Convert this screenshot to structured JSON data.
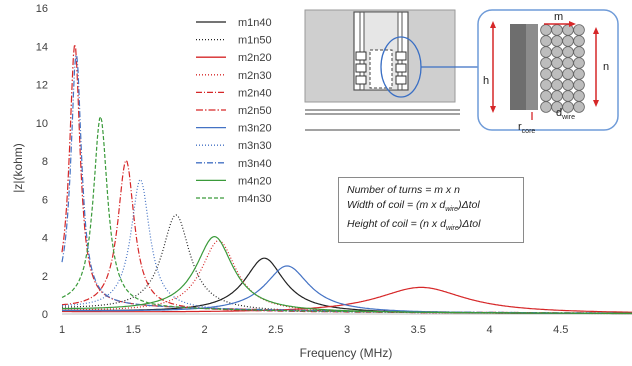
{
  "chart_data": {
    "type": "line",
    "title": "",
    "xlabel": "Frequency (MHz)",
    "ylabel": "|z|(kohm)",
    "xlim": [
      1,
      5
    ],
    "ylim": [
      0,
      16
    ],
    "xticks": [
      "1",
      "1.5",
      "2",
      "2.5",
      "3",
      "3.5",
      "4",
      "4.5"
    ],
    "yticks": [
      "0",
      "2",
      "4",
      "6",
      "8",
      "10",
      "12",
      "14",
      "16"
    ],
    "grid": false,
    "legend_position": "top-center",
    "series": [
      {
        "name": "m1n40",
        "color": "#222222",
        "dash": "",
        "peak_x": 2.42,
        "peak_y": 2.9,
        "width": 0.17,
        "base": 0.15
      },
      {
        "name": "m1n50",
        "color": "#222222",
        "dash": "1,2",
        "peak_x": 1.8,
        "peak_y": 5.1,
        "width": 0.12,
        "base": 0.25
      },
      {
        "name": "m2n20",
        "color": "#d62728",
        "dash": "",
        "peak_x": 3.52,
        "peak_y": 1.4,
        "width": 0.38,
        "base": 0.1
      },
      {
        "name": "m2n30",
        "color": "#d62728",
        "dash": "1,2",
        "peak_x": 2.1,
        "peak_y": 3.8,
        "width": 0.15,
        "base": 0.15
      },
      {
        "name": "m2n40",
        "color": "#d62728",
        "dash": "6,2,1,2",
        "peak_x": 1.45,
        "peak_y": 7.9,
        "width": 0.07,
        "base": 0.3
      },
      {
        "name": "m2n50",
        "color": "#d62728",
        "dash": "7,2,1.5,2",
        "peak_x": 1.09,
        "peak_y": 13.8,
        "width": 0.045,
        "base": 0.5
      },
      {
        "name": "m3n20",
        "color": "#4472c4",
        "dash": "",
        "peak_x": 2.58,
        "peak_y": 2.5,
        "width": 0.19,
        "base": 0.15
      },
      {
        "name": "m3n30",
        "color": "#4472c4",
        "dash": "1,2",
        "peak_x": 1.55,
        "peak_y": 6.9,
        "width": 0.08,
        "base": 0.3
      },
      {
        "name": "m3n40",
        "color": "#4472c4",
        "dash": "6,2,1,2",
        "peak_x": 1.1,
        "peak_y": 13.3,
        "width": 0.045,
        "base": 0.5
      },
      {
        "name": "m4n20",
        "color": "#3a9a3a",
        "dash": "",
        "peak_x": 2.07,
        "peak_y": 4.0,
        "width": 0.16,
        "base": 0.2
      },
      {
        "name": "m4n30",
        "color": "#3a9a3a",
        "dash": "4,2",
        "peak_x": 1.27,
        "peak_y": 10.1,
        "width": 0.06,
        "base": 0.4
      }
    ]
  },
  "formula_box": {
    "line1": "Number of turns = m x n",
    "line2_pre": "Width of coil = (m x d",
    "line2_sub": "wire",
    "line2_post": ")Δtol",
    "line3_pre": "Height of coil = (n x d",
    "line3_sub": "wire",
    "line3_post": ")Δtol"
  },
  "inset": {
    "label_m": "m",
    "label_n": "n",
    "label_h": "h",
    "label_dwire_main": "d",
    "label_dwire_sub": "wire",
    "label_rcore_main": "r",
    "label_rcore_sub": "core"
  }
}
